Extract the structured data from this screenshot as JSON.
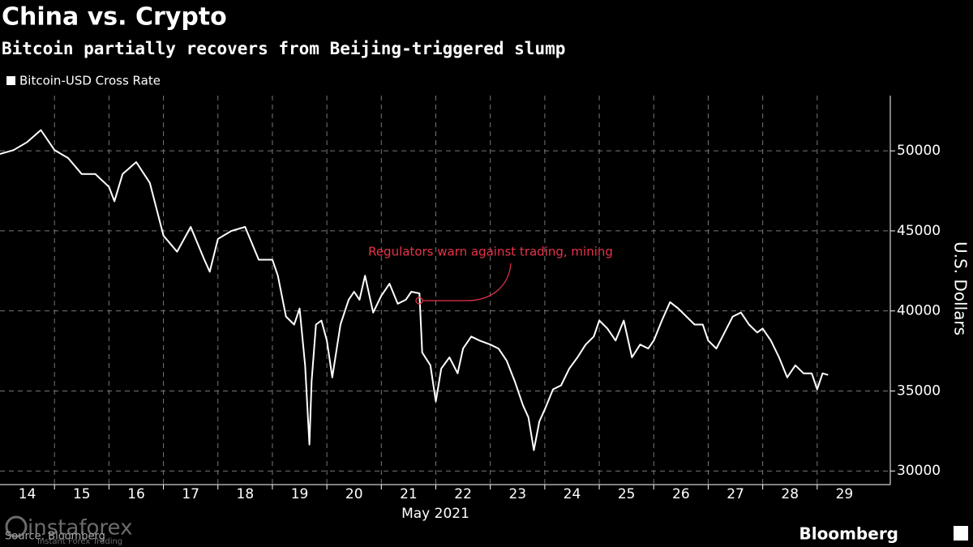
{
  "chart_data": {
    "type": "line",
    "title": "China vs. Crypto",
    "subtitle": "Bitcoin partially recovers from Beijing-triggered slump",
    "y_label": "U.S. Dollars",
    "x_label": "May 2021",
    "annotation": "Regulators warn against trading, mining",
    "annotation_color": "#e8334a",
    "source": "Source: Bloomberg",
    "brand": "Bloomberg",
    "watermark": "instaforex",
    "watermark_tagline": "Instant Forex Trading",
    "x": [
      14.0,
      14.25,
      14.5,
      14.75,
      15.0,
      15.25,
      15.5,
      15.75,
      16.0,
      16.1,
      16.25,
      16.5,
      16.75,
      17.0,
      17.25,
      17.5,
      17.75,
      17.85,
      18.0,
      18.25,
      18.5,
      18.75,
      19.0,
      19.1,
      19.25,
      19.4,
      19.5,
      19.6,
      19.68,
      19.72,
      19.8,
      19.9,
      20.0,
      20.1,
      20.25,
      20.4,
      20.5,
      20.6,
      20.7,
      20.85,
      21.0,
      21.15,
      21.3,
      21.45,
      21.55,
      21.7,
      21.75,
      21.9,
      22.0,
      22.1,
      22.25,
      22.4,
      22.5,
      22.65,
      22.8,
      23.0,
      23.15,
      23.3,
      23.45,
      23.6,
      23.7,
      23.8,
      23.9,
      24.0,
      24.15,
      24.3,
      24.45,
      24.6,
      24.75,
      24.9,
      25.0,
      25.15,
      25.3,
      25.45,
      25.6,
      25.75,
      25.9,
      26.0,
      26.15,
      26.3,
      26.45,
      26.6,
      26.75,
      26.9,
      27.0,
      27.15,
      27.3,
      27.45,
      27.6,
      27.75,
      27.9,
      28.0,
      28.15,
      28.3,
      28.45,
      28.6,
      28.75,
      28.9,
      29.0,
      29.1,
      29.2
    ],
    "series": [
      {
        "name": "Bitcoin-USD Cross Rate",
        "color": "#ffffff",
        "values": [
          49800,
          50050,
          50550,
          51300,
          50050,
          49550,
          48550,
          48550,
          47750,
          46850,
          48550,
          49300,
          48000,
          44700,
          43700,
          45250,
          43200,
          42450,
          44500,
          45000,
          45250,
          43200,
          43200,
          42200,
          39650,
          39150,
          40150,
          36600,
          31650,
          35600,
          39150,
          39400,
          38150,
          35850,
          39150,
          40700,
          41200,
          40700,
          42200,
          39900,
          40950,
          41700,
          40450,
          40700,
          41200,
          41100,
          37400,
          36600,
          34350,
          36400,
          37100,
          36100,
          37650,
          38400,
          38150,
          37900,
          37650,
          36900,
          35600,
          34100,
          33350,
          31300,
          33100,
          33850,
          35100,
          35350,
          36400,
          37100,
          37900,
          38400,
          39400,
          38900,
          38150,
          39400,
          37100,
          37900,
          37650,
          38150,
          39400,
          40550,
          40150,
          39650,
          39150,
          39150,
          38150,
          37650,
          38650,
          39650,
          39900,
          39150,
          38650,
          38900,
          38150,
          37100,
          35850,
          36600,
          36100,
          36100,
          35100,
          36100,
          36000
        ]
      }
    ],
    "xlim": [
      14,
      30
    ],
    "xticks": [
      {
        "value": 14.5,
        "label": "14"
      },
      {
        "value": 15.5,
        "label": "15"
      },
      {
        "value": 16.5,
        "label": "16"
      },
      {
        "value": 17.5,
        "label": "17"
      },
      {
        "value": 18.5,
        "label": "18"
      },
      {
        "value": 19.5,
        "label": "19"
      },
      {
        "value": 20.5,
        "label": "20"
      },
      {
        "value": 21.5,
        "label": "21"
      },
      {
        "value": 22.5,
        "label": "22"
      },
      {
        "value": 23.5,
        "label": "23"
      },
      {
        "value": 24.5,
        "label": "24"
      },
      {
        "value": 25.5,
        "label": "25"
      },
      {
        "value": 26.5,
        "label": "26"
      },
      {
        "value": 27.5,
        "label": "27"
      },
      {
        "value": 28.5,
        "label": "28"
      },
      {
        "value": 29.5,
        "label": "29"
      }
    ],
    "xgrid": [
      15,
      16,
      17,
      18,
      19,
      20,
      21,
      22,
      23,
      24,
      25,
      26,
      27,
      28,
      29
    ],
    "ylim": [
      29150,
      53450
    ],
    "yticks": [
      30000,
      35000,
      40000,
      45000,
      50000
    ],
    "grid": true
  }
}
